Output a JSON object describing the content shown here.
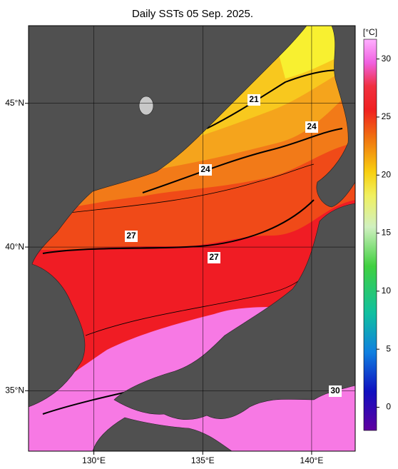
{
  "title": "Daily SSTs 05 Sep. 2025.",
  "lonlim": [
    127,
    142
  ],
  "latlim": [
    32.9,
    47.7
  ],
  "lon_ticks": [
    {
      "value": 130,
      "label": "130°E"
    },
    {
      "value": 135,
      "label": "135°E"
    },
    {
      "value": 140,
      "label": "140°E"
    }
  ],
  "lat_ticks": [
    {
      "value": 35,
      "label": "35°N"
    },
    {
      "value": 40,
      "label": "40°N"
    },
    {
      "value": 45,
      "label": "45°N"
    }
  ],
  "colorbar": {
    "unit": "[°C]",
    "lim": [
      -2,
      31.7
    ],
    "ticks": [
      0,
      5,
      10,
      15,
      20,
      25,
      30
    ]
  },
  "contour_labels": [
    21,
    24,
    24,
    27,
    27,
    30
  ]
}
